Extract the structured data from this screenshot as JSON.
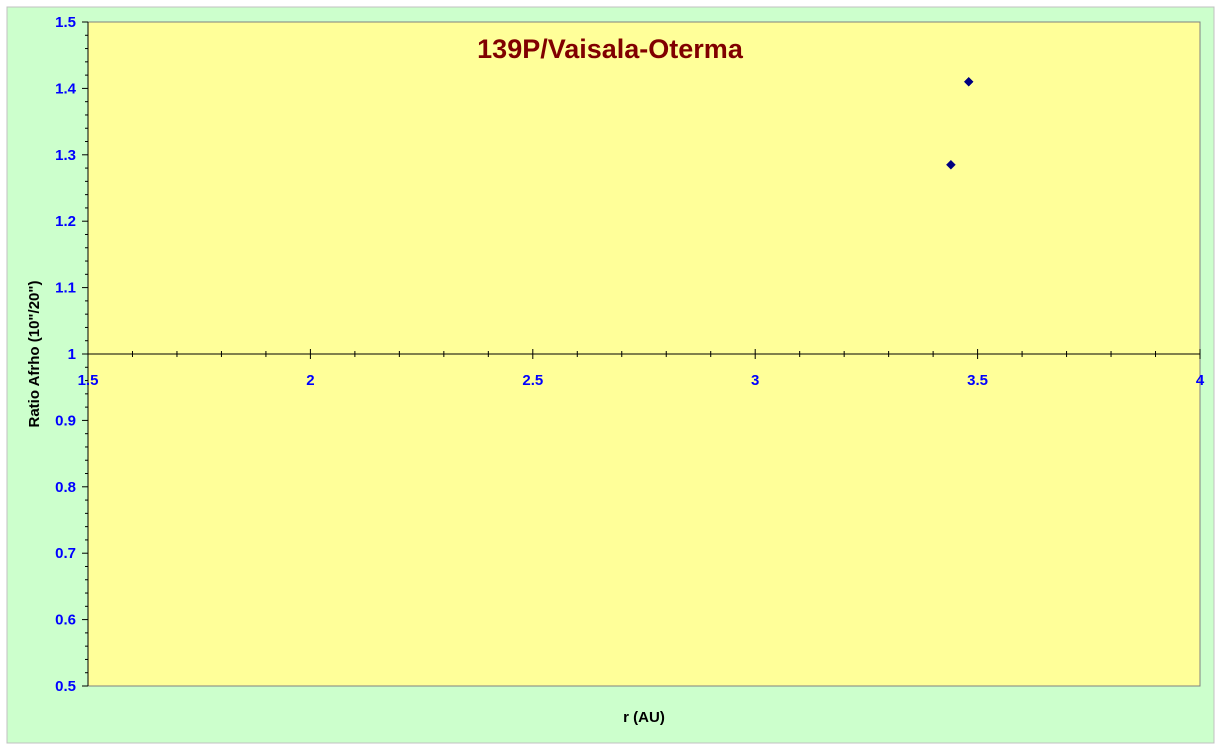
{
  "chart_data": {
    "type": "scatter",
    "title": "139P/Vaisala-Oterma",
    "xlabel": "r (AU)",
    "ylabel": "Ratio Afrho (10\"/20\")",
    "xlim": [
      1.5,
      4
    ],
    "ylim": [
      0.5,
      1.5
    ],
    "x_ticks": [
      "1.5",
      "2",
      "2.5",
      "3",
      "3.5",
      "4"
    ],
    "y_ticks": [
      "1.5",
      "1.4",
      "1.3",
      "1.2",
      "1.1",
      "1",
      "0.9",
      "0.8",
      "0.7",
      "0.6",
      "0.5"
    ],
    "x_axis_crosses_y": 1,
    "x_minor_step": 0.1,
    "y_minor_step": 0.02,
    "grid": false,
    "legend": "none",
    "marker": "diamond",
    "points": [
      {
        "x": 3.44,
        "y": 1.285
      },
      {
        "x": 3.48,
        "y": 1.41
      }
    ]
  },
  "colors": {
    "chart_background": "#ccffcc",
    "plot_background": "#ffff99",
    "title": "#800000",
    "tick_labels": "#0000ff",
    "axis_label": "#000000",
    "marker": "#000080",
    "axis_line": "#000000"
  }
}
